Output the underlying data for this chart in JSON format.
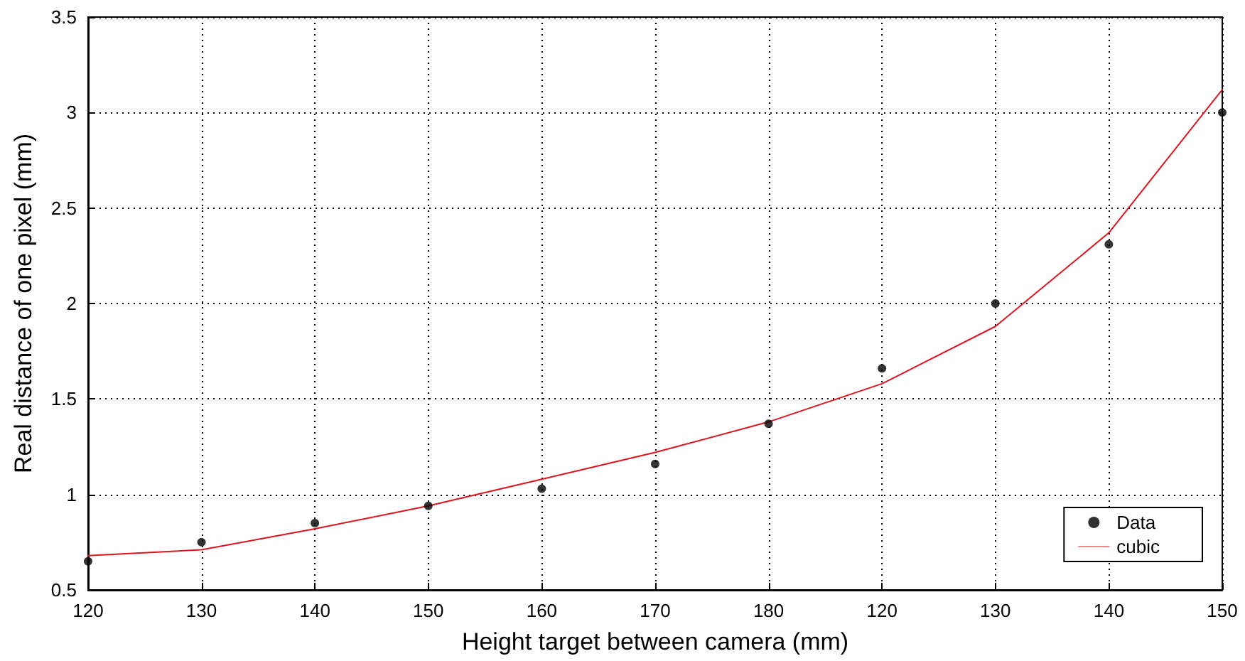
{
  "chart_data": {
    "type": "scatter",
    "xlabel": "Height target between camera (mm)",
    "ylabel": "Real distance of one pixel (mm)",
    "categories": [
      "120",
      "130",
      "140",
      "150",
      "160",
      "170",
      "180",
      "120",
      "130",
      "140",
      "150"
    ],
    "ylim": [
      0.5,
      3.5
    ],
    "yticks": [
      0.5,
      1,
      1.5,
      2,
      2.5,
      3,
      3.5
    ],
    "series": [
      {
        "name": "Data",
        "type": "scatter",
        "color": "#000000",
        "marker": "circle",
        "values": [
          0.65,
          0.75,
          0.85,
          0.94,
          1.03,
          1.16,
          1.37,
          1.66,
          2.0,
          2.31,
          3.0
        ]
      },
      {
        "name": "cubic",
        "type": "line",
        "color": "#e0141e",
        "marker": "none",
        "line_style": "solid",
        "values": [
          0.68,
          0.71,
          0.82,
          0.94,
          1.08,
          1.22,
          1.38,
          1.58,
          1.88,
          2.37,
          3.12
        ]
      }
    ],
    "grid": true,
    "legend": "bottom right"
  }
}
